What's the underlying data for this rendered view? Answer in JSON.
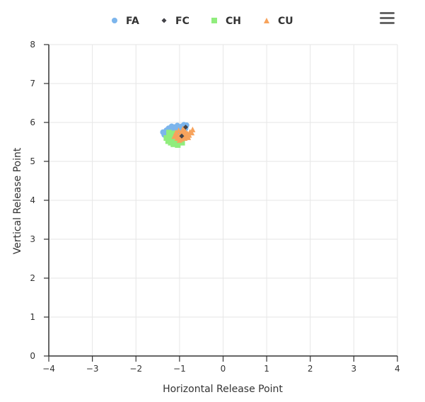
{
  "chart_data": {
    "type": "scatter",
    "xlabel": "Horizontal Release Point",
    "ylabel": "Vertical Release Point",
    "xlim": [
      -4,
      4
    ],
    "ylim": [
      0,
      8
    ],
    "x_ticks": [
      -4,
      -3,
      -2,
      -1,
      0,
      1,
      2,
      3,
      4
    ],
    "y_ticks": [
      0,
      1,
      2,
      3,
      4,
      5,
      6,
      7,
      8
    ],
    "x_tick_labels": [
      "−4",
      "−3",
      "−2",
      "−1",
      "0",
      "1",
      "2",
      "3",
      "4"
    ],
    "y_tick_labels": [
      "0",
      "1",
      "2",
      "3",
      "4",
      "5",
      "6",
      "7",
      "8"
    ],
    "grid": true,
    "legend_position": "top",
    "series": [
      {
        "name": "FA",
        "marker": "circle",
        "color": "#7cb5ec",
        "points": [
          [
            -1.38,
            5.75
          ],
          [
            -1.35,
            5.68
          ],
          [
            -1.3,
            5.8
          ],
          [
            -1.25,
            5.85
          ],
          [
            -1.22,
            5.72
          ],
          [
            -1.18,
            5.9
          ],
          [
            -1.15,
            5.78
          ],
          [
            -1.12,
            5.88
          ],
          [
            -1.1,
            5.65
          ],
          [
            -1.08,
            5.82
          ],
          [
            -1.05,
            5.92
          ],
          [
            -1.02,
            5.75
          ],
          [
            -1.0,
            5.86
          ],
          [
            -0.98,
            5.7
          ],
          [
            -0.95,
            5.9
          ],
          [
            -0.92,
            5.8
          ],
          [
            -0.9,
            5.94
          ],
          [
            -0.88,
            5.72
          ],
          [
            -0.86,
            5.85
          ],
          [
            -0.84,
            5.93
          ],
          [
            -1.2,
            5.62
          ],
          [
            -1.28,
            5.66
          ],
          [
            -1.14,
            5.58
          ],
          [
            -1.06,
            5.68
          ],
          [
            -0.96,
            5.62
          ]
        ]
      },
      {
        "name": "FC",
        "marker": "diamond",
        "color": "#434348",
        "points": [
          [
            -0.86,
            5.88
          ],
          [
            -0.95,
            5.65
          ]
        ]
      },
      {
        "name": "CH",
        "marker": "square",
        "color": "#90ed7d",
        "points": [
          [
            -1.3,
            5.6
          ],
          [
            -1.26,
            5.52
          ],
          [
            -1.22,
            5.66
          ],
          [
            -1.2,
            5.48
          ],
          [
            -1.16,
            5.58
          ],
          [
            -1.14,
            5.44
          ],
          [
            -1.12,
            5.54
          ],
          [
            -1.1,
            5.62
          ],
          [
            -1.08,
            5.46
          ],
          [
            -1.06,
            5.56
          ],
          [
            -1.04,
            5.42
          ],
          [
            -1.02,
            5.52
          ],
          [
            -1.0,
            5.6
          ],
          [
            -0.98,
            5.5
          ],
          [
            -0.96,
            5.58
          ],
          [
            -0.94,
            5.48
          ],
          [
            -1.18,
            5.7
          ],
          [
            -1.24,
            5.74
          ],
          [
            -1.1,
            5.72
          ]
        ]
      },
      {
        "name": "CU",
        "marker": "triangle",
        "color": "#f7a35c",
        "points": [
          [
            -1.12,
            5.65
          ],
          [
            -1.08,
            5.75
          ],
          [
            -1.05,
            5.6
          ],
          [
            -1.02,
            5.8
          ],
          [
            -1.0,
            5.68
          ],
          [
            -0.98,
            5.72
          ],
          [
            -0.96,
            5.58
          ],
          [
            -0.94,
            5.78
          ],
          [
            -0.92,
            5.65
          ],
          [
            -0.9,
            5.7
          ],
          [
            -0.88,
            5.6
          ],
          [
            -0.86,
            5.75
          ],
          [
            -0.84,
            5.66
          ],
          [
            -0.82,
            5.72
          ],
          [
            -0.8,
            5.62
          ],
          [
            -0.78,
            5.68
          ],
          [
            -0.76,
            5.76
          ],
          [
            -0.72,
            5.74
          ],
          [
            -0.7,
            5.82
          ],
          [
            -1.06,
            5.7
          ],
          [
            -1.0,
            5.55
          ],
          [
            -0.92,
            5.84
          ],
          [
            -0.96,
            5.66
          ],
          [
            -1.04,
            5.64
          ],
          [
            -0.88,
            5.8
          ]
        ]
      }
    ]
  },
  "menu": {
    "icon": "hamburger-menu-icon"
  }
}
